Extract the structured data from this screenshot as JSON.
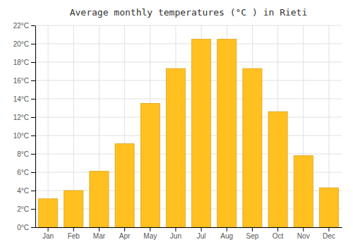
{
  "chart_data": {
    "type": "bar",
    "title": "Average monthly temperatures (°C ) in Rieti",
    "categories": [
      "Jan",
      "Feb",
      "Mar",
      "Apr",
      "May",
      "Jun",
      "Jul",
      "Aug",
      "Sep",
      "Oct",
      "Nov",
      "Dec"
    ],
    "values": [
      3.1,
      4.0,
      6.1,
      9.1,
      13.5,
      17.3,
      20.5,
      20.5,
      17.3,
      12.6,
      7.8,
      4.3
    ],
    "color": "#FFC020",
    "ylim": [
      0,
      22
    ],
    "yticks": [
      {
        "value": 0,
        "label": "0°C"
      },
      {
        "value": 2,
        "label": "2°C"
      },
      {
        "value": 4,
        "label": "4°C"
      },
      {
        "value": 6,
        "label": "6°C"
      },
      {
        "value": 8,
        "label": "8°C"
      },
      {
        "value": 10,
        "label": "10°C"
      },
      {
        "value": 12,
        "label": "12°C"
      },
      {
        "value": 14,
        "label": "14°C"
      },
      {
        "value": 16,
        "label": "16°C"
      },
      {
        "value": 18,
        "label": "18°C"
      },
      {
        "value": 20,
        "label": "20°C"
      },
      {
        "value": 22,
        "label": "22°C"
      }
    ],
    "grid": true
  }
}
